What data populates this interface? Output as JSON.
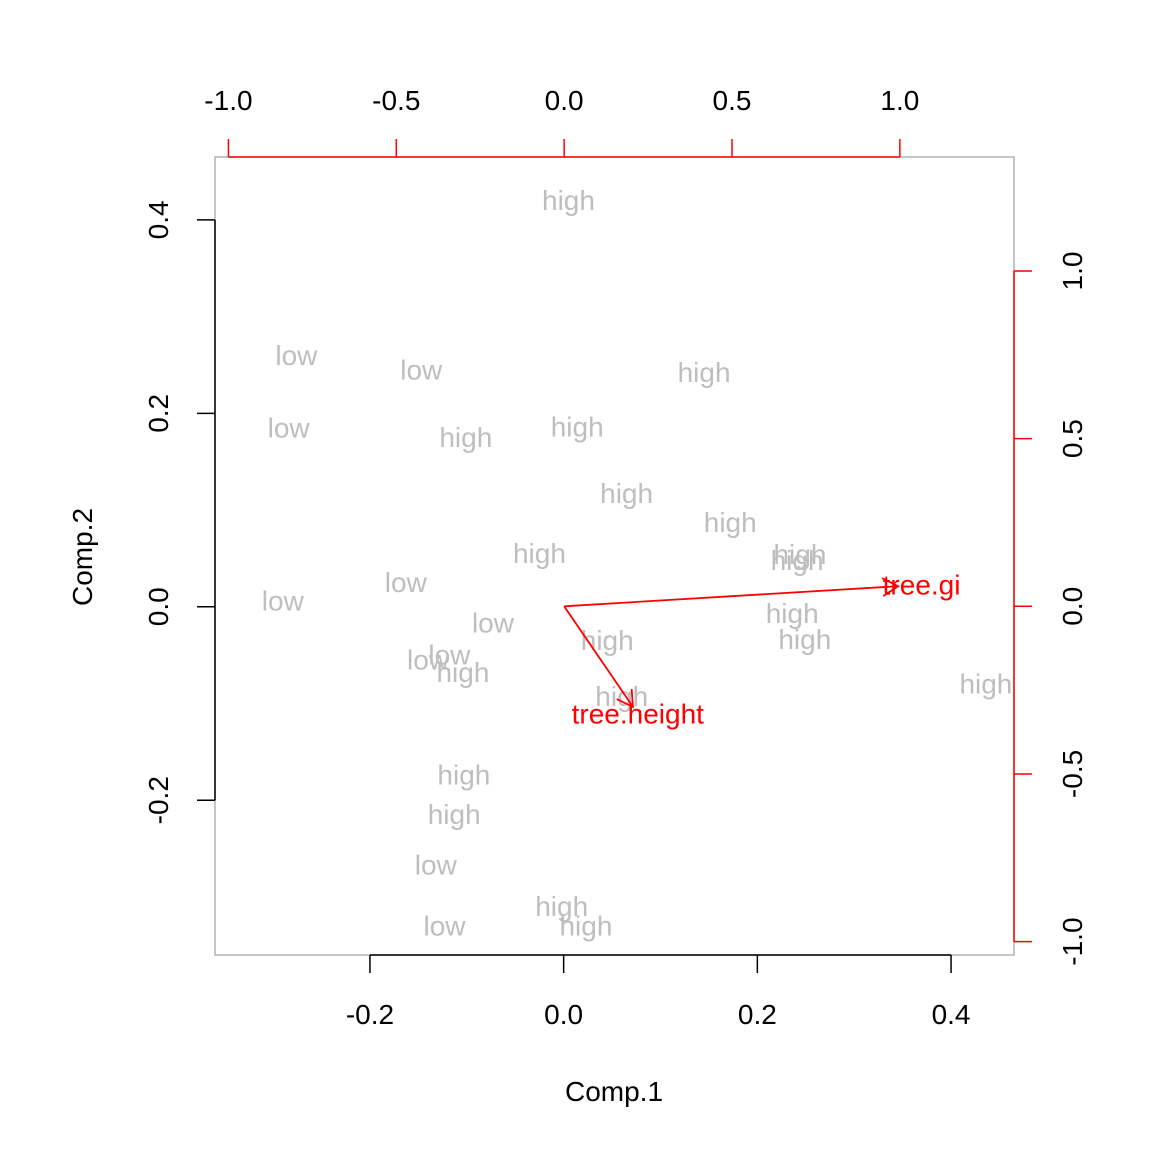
{
  "chart_data": {
    "type": "scatter",
    "subtype": "biplot",
    "xlabel": "Comp.1",
    "ylabel": "Comp.2",
    "xlim": [
      -0.36,
      0.465
    ],
    "ylim": [
      -0.36,
      0.465
    ],
    "x_ticks": [
      -0.2,
      0.0,
      0.2,
      0.4
    ],
    "y_ticks": [
      -0.2,
      0.0,
      0.2,
      0.4
    ],
    "x_tick_labels": [
      "-0.2",
      "0.0",
      "0.2",
      "0.4"
    ],
    "y_tick_labels": [
      "-0.2",
      "0.0",
      "0.2",
      "0.4"
    ],
    "secondary_axes": {
      "lim": [
        -1.04,
        1.34
      ],
      "x_ticks": [
        -1.0,
        -0.5,
        0.0,
        0.5,
        1.0
      ],
      "y_ticks": [
        -1.0,
        -0.5,
        0.0,
        0.5,
        1.0
      ],
      "x_tick_labels": [
        "-1.0",
        "-0.5",
        "0.0",
        "0.5",
        "1.0"
      ],
      "y_tick_labels": [
        "-1.0",
        "-0.5",
        "0.0",
        "0.5",
        "1.0"
      ],
      "color": "#ff0000"
    },
    "point_color": "#bebebe",
    "points": [
      {
        "label": "high",
        "x": 0.005,
        "y": 0.42
      },
      {
        "label": "low",
        "x": -0.276,
        "y": 0.26
      },
      {
        "label": "low",
        "x": -0.147,
        "y": 0.245
      },
      {
        "label": "high",
        "x": 0.145,
        "y": 0.242
      },
      {
        "label": "low",
        "x": -0.284,
        "y": 0.185
      },
      {
        "label": "high",
        "x": 0.014,
        "y": 0.186
      },
      {
        "label": "high",
        "x": -0.101,
        "y": 0.175
      },
      {
        "label": "high",
        "x": 0.065,
        "y": 0.117
      },
      {
        "label": "high",
        "x": 0.172,
        "y": 0.087
      },
      {
        "label": "high",
        "x": 0.244,
        "y": 0.054
      },
      {
        "label": "high",
        "x": 0.241,
        "y": 0.048
      },
      {
        "label": "high",
        "x": -0.025,
        "y": 0.055
      },
      {
        "label": "low",
        "x": -0.163,
        "y": 0.025
      },
      {
        "label": "low",
        "x": -0.29,
        "y": 0.006
      },
      {
        "label": "high",
        "x": 0.236,
        "y": -0.007
      },
      {
        "label": "low",
        "x": -0.073,
        "y": -0.017
      },
      {
        "label": "high",
        "x": 0.249,
        "y": -0.034
      },
      {
        "label": "high",
        "x": 0.045,
        "y": -0.035
      },
      {
        "label": "low",
        "x": -0.118,
        "y": -0.05
      },
      {
        "label": "low",
        "x": -0.14,
        "y": -0.055
      },
      {
        "label": "high",
        "x": -0.104,
        "y": -0.068
      },
      {
        "label": "high",
        "x": 0.436,
        "y": -0.08
      },
      {
        "label": "high",
        "x": 0.06,
        "y": -0.093
      },
      {
        "label": "high",
        "x": -0.103,
        "y": -0.174
      },
      {
        "label": "high",
        "x": -0.113,
        "y": -0.215
      },
      {
        "label": "low",
        "x": -0.132,
        "y": -0.267
      },
      {
        "label": "high",
        "x": -0.002,
        "y": -0.31
      },
      {
        "label": "low",
        "x": -0.123,
        "y": -0.33
      },
      {
        "label": "high",
        "x": 0.023,
        "y": -0.33
      }
    ],
    "loadings": [
      {
        "name": "tree.girth",
        "x": 0.995,
        "y": 0.06,
        "label_text": "tree.gi"
      },
      {
        "name": "tree.height",
        "x": 0.205,
        "y": -0.3,
        "label_text": "tree.height"
      }
    ],
    "loading_color": "#ff0000"
  }
}
